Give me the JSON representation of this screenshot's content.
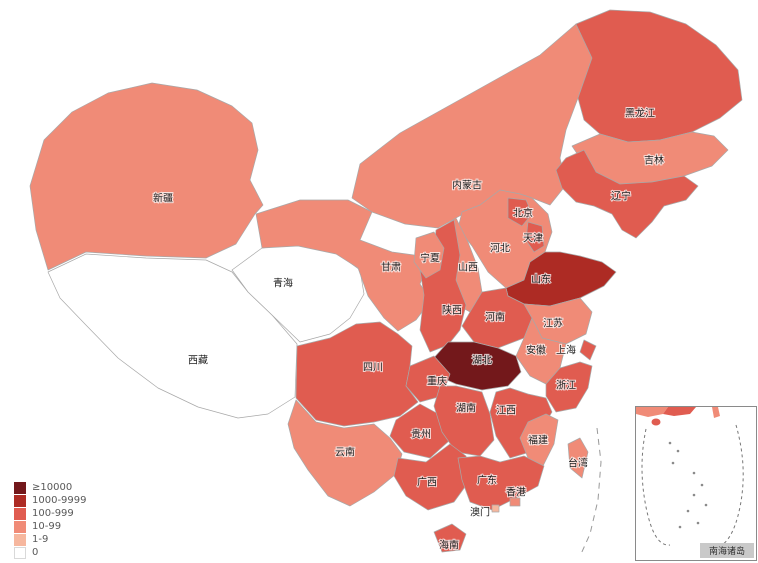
{
  "legend": {
    "items": [
      {
        "label": "≥10000",
        "color": "#73181b"
      },
      {
        "label": "1000-9999",
        "color": "#ad2b24"
      },
      {
        "label": "100-999",
        "color": "#e05c50"
      },
      {
        "label": "10-99",
        "color": "#f08b77"
      },
      {
        "label": "1-9",
        "color": "#f6b79e"
      },
      {
        "label": "0",
        "color": "#ffffff"
      }
    ]
  },
  "inset": {
    "label": "南海诸岛"
  },
  "map": {
    "border_color": "#a8a8a8",
    "label_color": "#1f1f1f"
  },
  "provinces": [
    {
      "id": "xinjiang",
      "label": "新疆",
      "category": "10-99"
    },
    {
      "id": "xizang",
      "label": "西藏",
      "category": "0"
    },
    {
      "id": "qinghai",
      "label": "青海",
      "category": "0"
    },
    {
      "id": "gansu",
      "label": "甘肃",
      "category": "10-99"
    },
    {
      "id": "neimenggu",
      "label": "内蒙古",
      "category": "10-99"
    },
    {
      "id": "heilongjiang",
      "label": "黑龙江",
      "category": "100-999"
    },
    {
      "id": "jilin",
      "label": "吉林",
      "category": "10-99"
    },
    {
      "id": "liaoning",
      "label": "辽宁",
      "category": "100-999"
    },
    {
      "id": "hebei",
      "label": "河北",
      "category": "10-99"
    },
    {
      "id": "shanxi",
      "label": "山西",
      "category": "10-99"
    },
    {
      "id": "shaanxi",
      "label": "陕西",
      "category": "100-999"
    },
    {
      "id": "ningxia",
      "label": "宁夏",
      "category": "10-99"
    },
    {
      "id": "beijing",
      "label": "北京",
      "category": "100-999"
    },
    {
      "id": "tianjin",
      "label": "天津",
      "category": "100-999"
    },
    {
      "id": "shandong",
      "label": "山东",
      "category": "1000-9999"
    },
    {
      "id": "henan",
      "label": "河南",
      "category": "100-999"
    },
    {
      "id": "jiangsu",
      "label": "江苏",
      "category": "10-99"
    },
    {
      "id": "anhui",
      "label": "安徽",
      "category": "10-99"
    },
    {
      "id": "shanghai",
      "label": "上海",
      "category": "100-999"
    },
    {
      "id": "hubei",
      "label": "湖北",
      "category": "≥10000"
    },
    {
      "id": "zhejiang",
      "label": "浙江",
      "category": "100-999"
    },
    {
      "id": "sichuan",
      "label": "四川",
      "category": "100-999"
    },
    {
      "id": "yunnan",
      "label": "云南",
      "category": "10-99"
    },
    {
      "id": "chongqing",
      "label": "重庆",
      "category": "100-999"
    },
    {
      "id": "guizhou",
      "label": "贵州",
      "category": "100-999"
    },
    {
      "id": "hunan",
      "label": "湖南",
      "category": "100-999"
    },
    {
      "id": "jiangxi",
      "label": "江西",
      "category": "100-999"
    },
    {
      "id": "fujian",
      "label": "福建",
      "category": "10-99"
    },
    {
      "id": "guangxi",
      "label": "广西",
      "category": "100-999"
    },
    {
      "id": "guangdong",
      "label": "广东",
      "category": "100-999"
    },
    {
      "id": "xianggang",
      "label": "香港",
      "category": "10-99"
    },
    {
      "id": "aomen",
      "label": "澳门",
      "category": "1-9"
    },
    {
      "id": "hainan",
      "label": "海南",
      "category": "100-999"
    },
    {
      "id": "taiwan",
      "label": "台湾",
      "category": "10-99"
    }
  ]
}
